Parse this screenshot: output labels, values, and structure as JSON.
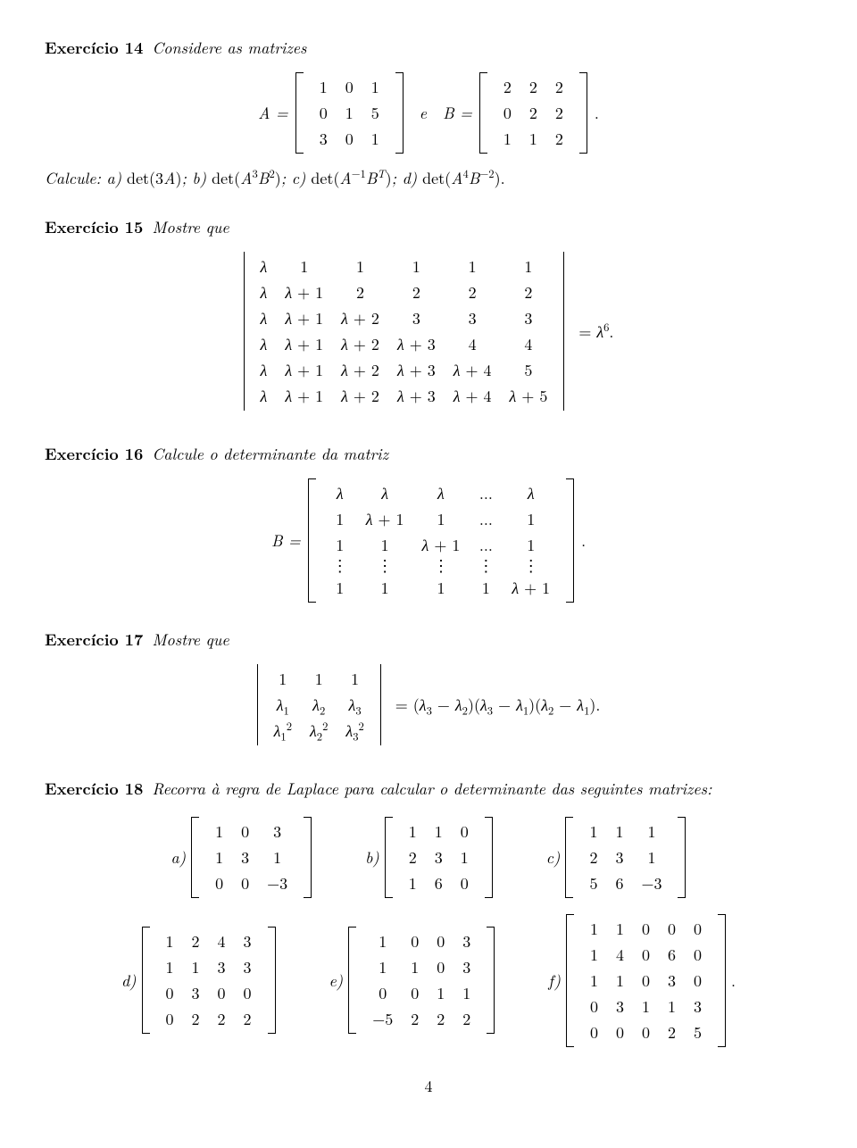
{
  "ex14": {
    "heading": "Exercício 14",
    "intro": "Considere as matrizes",
    "A_label": "A =",
    "A_rows": [
      [
        "1",
        "0",
        "1"
      ],
      [
        "0",
        "1",
        "5"
      ],
      [
        "3",
        "0",
        "1"
      ]
    ],
    "e": "e",
    "B_label": "B =",
    "B_rows": [
      [
        "2",
        "2",
        "2"
      ],
      [
        "0",
        "2",
        "2"
      ],
      [
        "1",
        "1",
        "2"
      ]
    ],
    "period": ".",
    "calc": "Calcule: a) det(3A); b) det(A³B²); c) det(A⁻¹Bᵀ); d) det(A⁴B⁻²)."
  },
  "ex15": {
    "heading": "Exercício 15",
    "intro": "Mostre que",
    "det_rows": [
      [
        "λ",
        "1",
        "1",
        "1",
        "1",
        "1"
      ],
      [
        "λ",
        "λ + 1",
        "2",
        "2",
        "2",
        "2"
      ],
      [
        "λ",
        "λ + 1",
        "λ + 2",
        "3",
        "3",
        "3"
      ],
      [
        "λ",
        "λ + 1",
        "λ + 2",
        "λ + 3",
        "4",
        "4"
      ],
      [
        "λ",
        "λ + 1",
        "λ + 2",
        "λ + 3",
        "λ + 4",
        "5"
      ],
      [
        "λ",
        "λ + 1",
        "λ + 2",
        "λ + 3",
        "λ + 4",
        "λ + 5"
      ]
    ],
    "rhs": "= λ⁶."
  },
  "ex16": {
    "heading": "Exercício 16",
    "intro": "Calcule o determinante da matriz",
    "B_label": "B =",
    "rows": [
      [
        "λ",
        "λ",
        "λ",
        "...",
        "λ"
      ],
      [
        "1",
        "λ + 1",
        "1",
        "...",
        "1"
      ],
      [
        "1",
        "1",
        "λ + 1",
        "...",
        "1"
      ],
      [
        "⋮",
        "⋮",
        "⋮",
        "⋮",
        "⋮"
      ],
      [
        "1",
        "1",
        "1",
        "1",
        "λ + 1"
      ]
    ],
    "period": "."
  },
  "ex17": {
    "heading": "Exercício 17",
    "intro": "Mostre que",
    "det_rows": [
      [
        "1",
        "1",
        "1"
      ],
      [
        "λ₁",
        "λ₂",
        "λ₃"
      ],
      [
        "λ₁²",
        "λ₂²",
        "λ₃²"
      ]
    ],
    "rhs": "= (λ₃ − λ₂)(λ₃ − λ₁)(λ₂ − λ₁)."
  },
  "ex18": {
    "heading": "Exercício 18",
    "intro": "Recorra à regra de Laplace para calcular o determinante das seguintes matrizes:",
    "items_row1": [
      {
        "label": "a)",
        "rows": [
          [
            "1",
            "0",
            "3"
          ],
          [
            "1",
            "3",
            "1"
          ],
          [
            "0",
            "0",
            "−3"
          ]
        ]
      },
      {
        "label": "b)",
        "rows": [
          [
            "1",
            "1",
            "0"
          ],
          [
            "2",
            "3",
            "1"
          ],
          [
            "1",
            "6",
            "0"
          ]
        ]
      },
      {
        "label": "c)",
        "rows": [
          [
            "1",
            "1",
            "1"
          ],
          [
            "2",
            "3",
            "1"
          ],
          [
            "5",
            "6",
            "−3"
          ]
        ]
      }
    ],
    "items_row2": [
      {
        "label": "d)",
        "rows": [
          [
            "1",
            "2",
            "4",
            "3"
          ],
          [
            "1",
            "1",
            "3",
            "3"
          ],
          [
            "0",
            "3",
            "0",
            "0"
          ],
          [
            "0",
            "2",
            "2",
            "2"
          ]
        ]
      },
      {
        "label": "e)",
        "rows": [
          [
            "1",
            "0",
            "0",
            "3"
          ],
          [
            "1",
            "1",
            "0",
            "3"
          ],
          [
            "0",
            "0",
            "1",
            "1"
          ],
          [
            "−5",
            "2",
            "2",
            "2"
          ]
        ]
      },
      {
        "label": "f)",
        "rows": [
          [
            "1",
            "1",
            "0",
            "0",
            "0"
          ],
          [
            "1",
            "4",
            "0",
            "6",
            "0"
          ],
          [
            "1",
            "1",
            "0",
            "3",
            "0"
          ],
          [
            "0",
            "3",
            "1",
            "1",
            "3"
          ],
          [
            "0",
            "0",
            "0",
            "2",
            "5"
          ]
        ],
        "trail": "."
      }
    ]
  },
  "page_number": "4"
}
